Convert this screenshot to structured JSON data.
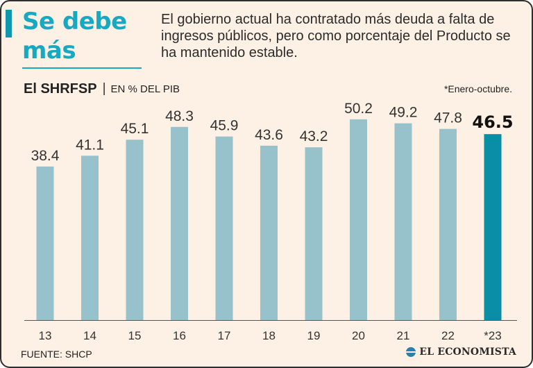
{
  "headline": "Se debe más",
  "intro": "El gobierno actual ha contratado más deuda a falta de ingresos públicos, pero como porcentaje del Producto se ha mantenido estable.",
  "subtitle_main": "El SHRFSP",
  "subtitle_separator": "|",
  "subtitle_unit": "EN % DEL PIB",
  "note": "*Enero-octubre.",
  "source": "FUENTE: SHCP",
  "logo_text": "EL ECONOMISTA",
  "colors": {
    "bar": "#97c1cb",
    "highlight": "#0a8ea6",
    "headline": "#16a9c1",
    "background": "#fcf1e4"
  },
  "chart_data": {
    "type": "bar",
    "title": "El SHRFSP",
    "ylabel": "EN % DEL PIB",
    "xlabel": "",
    "categories": [
      "13",
      "14",
      "15",
      "16",
      "17",
      "18",
      "19",
      "20",
      "21",
      "22",
      "*23"
    ],
    "values": [
      38.4,
      41.1,
      45.1,
      48.3,
      45.9,
      43.6,
      43.2,
      50.2,
      49.2,
      47.8,
      46.5
    ],
    "value_labels": [
      "38.4",
      "41.1",
      "45.1",
      "48.3",
      "45.9",
      "43.6",
      "43.2",
      "50.2",
      "49.2",
      "47.8",
      "46.5"
    ],
    "highlight_index": 10,
    "ylim": [
      0,
      52
    ],
    "grid": false,
    "legend": "none"
  }
}
